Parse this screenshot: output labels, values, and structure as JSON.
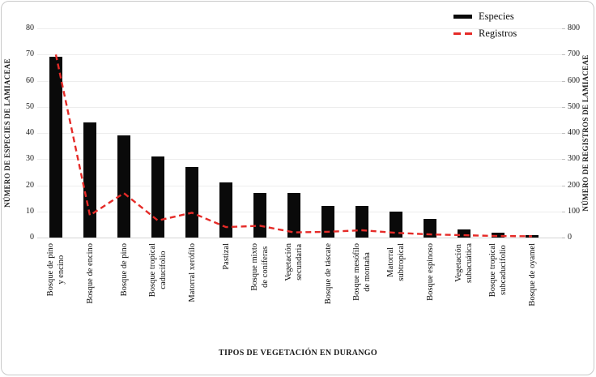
{
  "figure": {
    "background": "#ffffff",
    "border_color": "#c9c9c9",
    "bar_color": "#0a0a0a",
    "line_color": "#e52b28",
    "grid_color": "#ededed"
  },
  "legend": {
    "items": [
      {
        "label": "Especies",
        "marker": "black-bar-marker",
        "color": "#0a0a0a"
      },
      {
        "label": "Registros",
        "marker": "red-dashed-marker",
        "color": "#e52b28"
      }
    ]
  },
  "chart_data": {
    "type": "bar",
    "subtype": "bar+line dual axis",
    "grid": true,
    "legend_position": "top-right",
    "categories": [
      "Bosque de pino\ny encino",
      "Bosque de encino",
      "Bosque de pino",
      "Bosque tropical\ncaducifolio",
      "Matorral xerófilo",
      "Pastizal",
      "Bosque mixto\nde coníferas",
      "Vegetación\nsecundaria",
      "Bosque de táscate",
      "Bosque mesófilo\nde montaña",
      "Matorral\nsubtropical",
      "Bosque espinoso",
      "Vegetación\nsubacuática",
      "Bosque tropical\nsubcaducifolio",
      "Bosque de oyamel"
    ],
    "series": [
      {
        "name": "Especies",
        "type": "bar",
        "axis": "left",
        "color": "#0a0a0a",
        "values": [
          69,
          44,
          39,
          31,
          27,
          21,
          17,
          17,
          12,
          12,
          10,
          7,
          3,
          2,
          1
        ]
      },
      {
        "name": "Registros",
        "type": "line",
        "style": "dashed",
        "axis": "right",
        "color": "#e52b28",
        "values": [
          700,
          85,
          170,
          65,
          95,
          40,
          45,
          20,
          22,
          28,
          18,
          12,
          9,
          6,
          5
        ]
      }
    ],
    "left_axis": {
      "label": "NÚMERO DE ESPECIES DE LAMIACEAE",
      "min": 0,
      "max": 80,
      "step": 10,
      "tick_labels": [
        "0",
        "10",
        "20",
        "30",
        "40",
        "50",
        "60",
        "70",
        "80"
      ]
    },
    "right_axis": {
      "label": "NÚMERO DE REGISTROS DE LAMIACEAE",
      "min": 0,
      "max": 800,
      "step": 100,
      "tick_labels": [
        "0",
        "100",
        "200",
        "300",
        "400",
        "500",
        "600",
        "700",
        "800"
      ]
    },
    "x_axis": {
      "label": "TIPOS DE VEGETACIÓN EN DURANGO"
    }
  }
}
